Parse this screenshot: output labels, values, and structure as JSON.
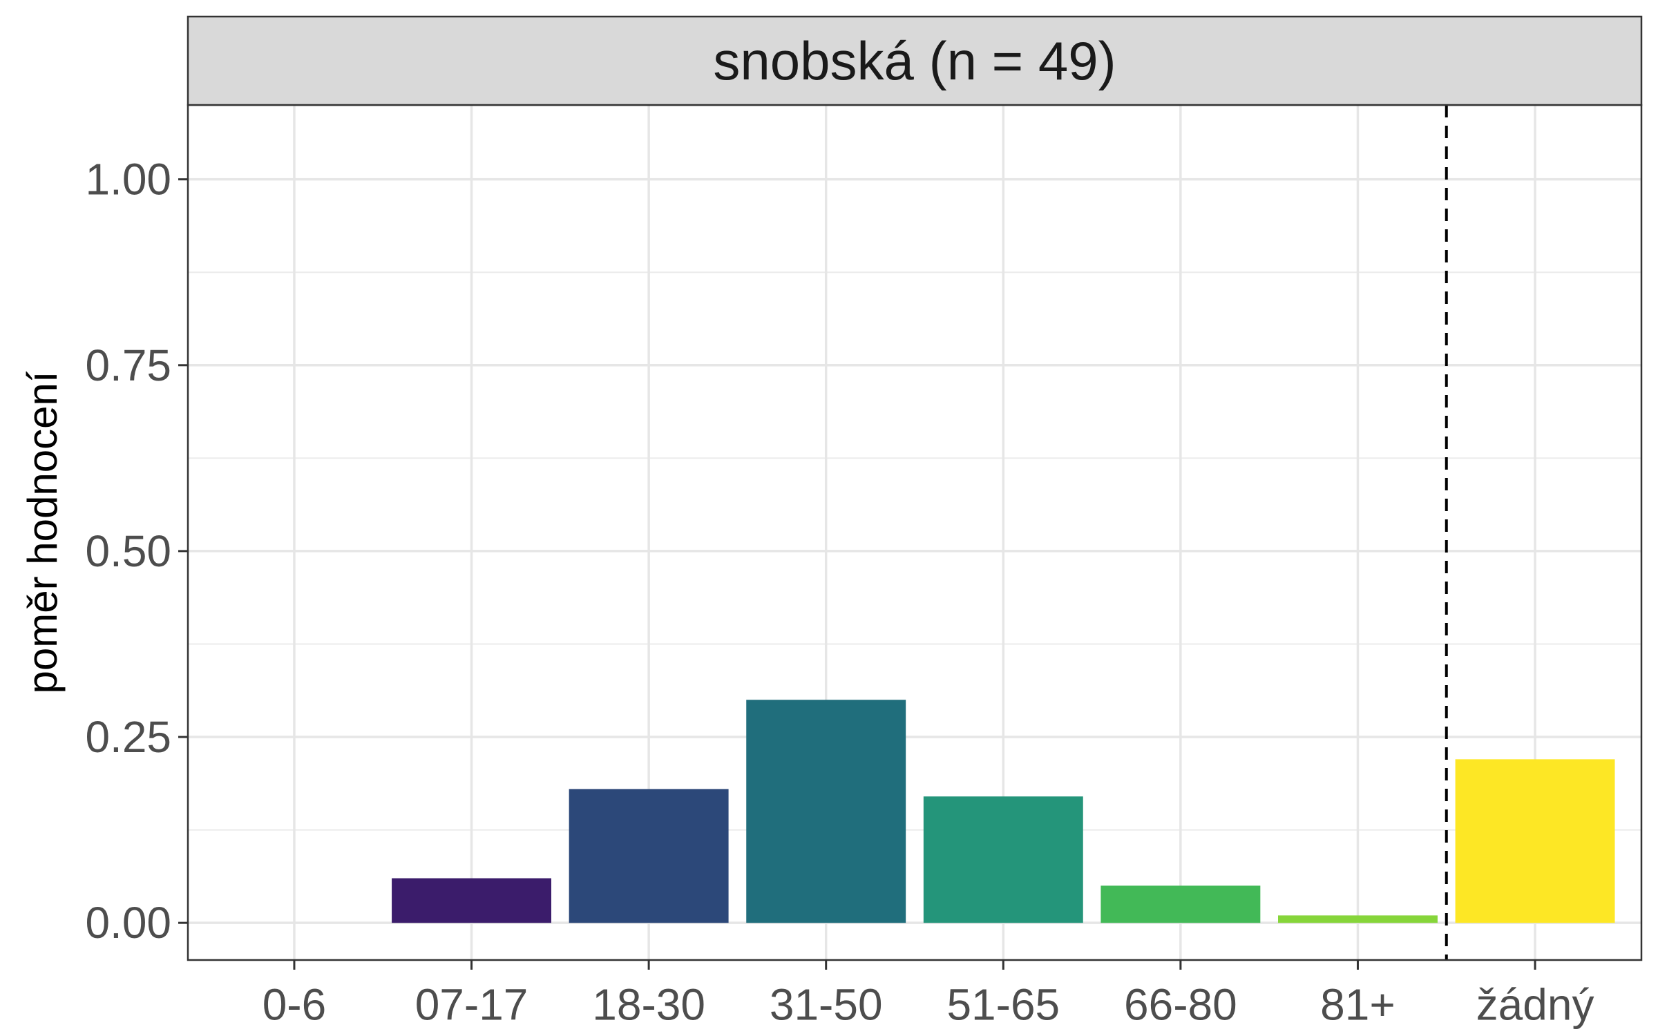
{
  "chart_data": {
    "type": "bar",
    "facet_title": "snobská (n = 49)",
    "xlabel": "",
    "ylabel": "poměr hodnocení",
    "categories": [
      "0-6",
      "07-17",
      "18-30",
      "31-50",
      "51-65",
      "66-80",
      "81+",
      "žádný"
    ],
    "values": [
      0.0,
      0.06,
      0.18,
      0.3,
      0.17,
      0.05,
      0.01,
      0.22
    ],
    "colors": [
      "#440154",
      "#3B1C6B",
      "#2C4879",
      "#206E7C",
      "#24957A",
      "#42B957",
      "#86D53A",
      "#FDE725"
    ],
    "ylim": [
      -0.05,
      1.1
    ],
    "yticks": [
      0.0,
      0.25,
      0.5,
      0.75,
      1.0
    ],
    "ytick_labels": [
      "0.00",
      "0.25",
      "0.50",
      "0.75",
      "1.00"
    ],
    "reference_line": {
      "between": [
        "81+",
        "žádný"
      ],
      "style": "dashed",
      "color": "#000000"
    },
    "grid": true,
    "legend": "none"
  }
}
